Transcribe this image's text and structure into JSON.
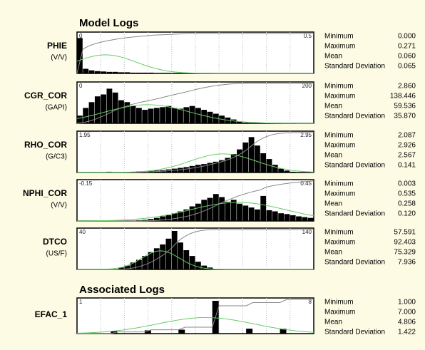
{
  "sections": [
    {
      "title": "Model Logs",
      "panels": [
        {
          "name": "PHIE",
          "unit": "(V/V)",
          "xlim": [
            0,
            0.5
          ],
          "ylim": [
            0,
            100
          ],
          "counts": [
            92,
            12,
            8,
            6,
            5,
            4,
            4,
            3,
            3,
            2,
            2,
            2,
            2,
            1,
            1,
            1,
            1,
            1,
            1,
            0,
            0,
            0,
            0,
            0,
            0,
            0,
            0,
            0,
            0,
            0,
            0,
            0,
            0,
            0,
            0,
            0,
            0,
            0,
            0,
            0
          ],
          "stats": [
            {
              "label": "Minimum",
              "value": "0.000"
            },
            {
              "label": "Maximum",
              "value": "0.271"
            },
            {
              "label": "Mean",
              "value": "0.060"
            },
            {
              "label": "Standard Deviation",
              "value": "0.065"
            }
          ]
        },
        {
          "name": "CGR_COR",
          "unit": "(GAPI)",
          "xlim": [
            0,
            200
          ],
          "ylim": [
            0,
            100
          ],
          "counts": [
            20,
            40,
            55,
            70,
            75,
            90,
            80,
            60,
            55,
            45,
            40,
            35,
            38,
            40,
            42,
            45,
            40,
            38,
            42,
            45,
            40,
            35,
            30,
            25,
            20,
            15,
            10,
            5,
            2,
            0,
            0,
            0,
            0,
            0,
            0,
            0,
            0,
            0,
            0,
            0
          ],
          "stats": [
            {
              "label": "Minimum",
              "value": "2.860"
            },
            {
              "label": "Maximum",
              "value": "138.446"
            },
            {
              "label": "Mean",
              "value": "59.536"
            },
            {
              "label": "Standard Deviation",
              "value": "35.870"
            }
          ]
        },
        {
          "name": "RHO_COR",
          "unit": "(G/C3)",
          "xlim": [
            1.95,
            2.95
          ],
          "ylim": [
            0,
            100
          ],
          "counts": [
            0,
            0,
            1,
            0,
            0,
            2,
            0,
            1,
            1,
            2,
            3,
            2,
            4,
            5,
            6,
            8,
            10,
            12,
            14,
            17,
            20,
            22,
            25,
            28,
            32,
            38,
            48,
            60,
            78,
            92,
            70,
            50,
            35,
            20,
            10,
            5,
            2,
            1,
            0,
            0
          ],
          "stats": [
            {
              "label": "Minimum",
              "value": "2.087"
            },
            {
              "label": "Maximum",
              "value": "2.926"
            },
            {
              "label": "Mean",
              "value": "2.567"
            },
            {
              "label": "Standard Deviation",
              "value": "0.141"
            }
          ]
        },
        {
          "name": "NPHI_COR",
          "unit": "(V/V)",
          "xlim": [
            -0.15,
            0.45
          ],
          "ylim": [
            0,
            100
          ],
          "counts": [
            0,
            0,
            0,
            0,
            0,
            0,
            0,
            0,
            0,
            0,
            2,
            3,
            5,
            8,
            12,
            15,
            20,
            25,
            30,
            38,
            45,
            55,
            60,
            70,
            62,
            50,
            55,
            45,
            40,
            35,
            30,
            65,
            28,
            25,
            20,
            18,
            15,
            12,
            10,
            8
          ],
          "stats": [
            {
              "label": "Minimum",
              "value": "0.003"
            },
            {
              "label": "Maximum",
              "value": "0.535"
            },
            {
              "label": "Mean",
              "value": "0.258"
            },
            {
              "label": "Standard Deviation",
              "value": "0.120"
            }
          ]
        },
        {
          "name": "DTCO",
          "unit": "(US/F)",
          "xlim": [
            40,
            140
          ],
          "ylim": [
            0,
            100
          ],
          "counts": [
            0,
            0,
            0,
            0,
            0,
            0,
            0,
            5,
            10,
            18,
            25,
            35,
            45,
            55,
            65,
            80,
            100,
            70,
            50,
            35,
            20,
            10,
            5,
            0,
            0,
            0,
            0,
            0,
            0,
            0,
            0,
            0,
            0,
            0,
            0,
            0,
            0,
            0,
            0,
            0
          ],
          "stats": [
            {
              "label": "Minimum",
              "value": "57.591"
            },
            {
              "label": "Maximum",
              "value": "92.403"
            },
            {
              "label": "Mean",
              "value": "75.329"
            },
            {
              "label": "Standard Deviation",
              "value": "7.936"
            }
          ]
        }
      ]
    },
    {
      "title": "Associated Logs",
      "panels": [
        {
          "name": "EFAC_1",
          "xlim": [
            1,
            8
          ],
          "ylim": [
            0,
            100
          ],
          "counts": [
            0,
            0,
            0,
            0,
            0,
            8,
            0,
            0,
            0,
            0,
            10,
            0,
            0,
            0,
            0,
            12,
            0,
            0,
            0,
            0,
            100,
            0,
            0,
            0,
            0,
            15,
            0,
            0,
            0,
            0,
            15,
            0,
            0,
            0,
            0
          ],
          "stats": [
            {
              "label": "Minimum",
              "value": "1.000"
            },
            {
              "label": "Maximum",
              "value": "7.000"
            },
            {
              "label": "Mean",
              "value": "4.806"
            },
            {
              "label": "Standard Deviation",
              "value": "1.422"
            }
          ]
        }
      ]
    }
  ]
}
